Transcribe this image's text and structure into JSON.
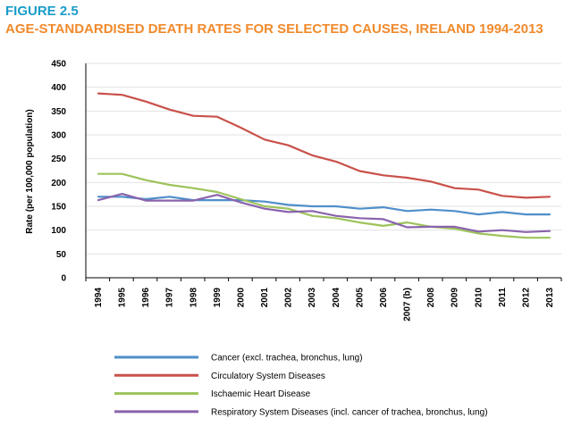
{
  "figure_label": "FIGURE 2.5",
  "chart_data": {
    "type": "line",
    "title": "AGE-STANDARDISED DEATH RATES FOR SELECTED CAUSES, IRELAND 1994-2013",
    "xlabel": "",
    "ylabel": "Rate (per 100,000 population)",
    "ylim": [
      0,
      450
    ],
    "yticks": [
      0,
      50,
      100,
      150,
      200,
      250,
      300,
      350,
      400,
      450
    ],
    "grid": true,
    "legend_position": "bottom",
    "categories": [
      "1994",
      "1995",
      "1996",
      "1997",
      "1998",
      "1999",
      "2000",
      "2001",
      "2002",
      "2003",
      "2004",
      "2005",
      "2006",
      "2007 (b)",
      "2008",
      "2009",
      "2010",
      "2011",
      "2012",
      "2013"
    ],
    "series": [
      {
        "name": "Cancer (excl. trachea, bronchus, lung)",
        "color": "#4f8fc9",
        "values": [
          170,
          170,
          165,
          170,
          163,
          163,
          163,
          160,
          153,
          150,
          150,
          145,
          148,
          140,
          143,
          140,
          133,
          138,
          133,
          133
        ]
      },
      {
        "name": "Circulatory System Diseases",
        "color": "#c9514a",
        "values": [
          387,
          384,
          370,
          353,
          340,
          338,
          315,
          290,
          278,
          257,
          244,
          224,
          215,
          210,
          202,
          188,
          185,
          172,
          168,
          170
        ]
      },
      {
        "name": "Ischaemic Heart Disease",
        "color": "#9dc35a",
        "values": [
          218,
          218,
          205,
          195,
          188,
          180,
          165,
          150,
          145,
          130,
          125,
          116,
          109,
          116,
          107,
          103,
          93,
          88,
          84,
          84
        ]
      },
      {
        "name": "Respiratory System Diseases (incl. cancer of trachea, bronchus, lung)",
        "color": "#8a63ad",
        "values": [
          163,
          176,
          162,
          162,
          162,
          174,
          158,
          145,
          138,
          140,
          130,
          125,
          123,
          106,
          107,
          107,
          97,
          100,
          96,
          98
        ]
      }
    ]
  }
}
